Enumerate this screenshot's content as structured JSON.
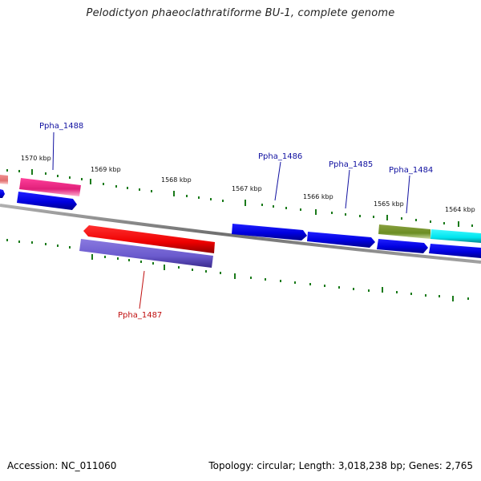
{
  "title": "Pelodictyon phaeoclathratiforme BU-1, complete genome",
  "footer": {
    "accession": "Accession: NC_011060",
    "summary": "Topology: circular; Length: 3,018,238 bp; Genes: 2,765"
  },
  "colors": {
    "backbone": "#808080",
    "tick": "#1a7a1a",
    "label_forward": "#1010a0",
    "label_reverse": "#c01010"
  },
  "kbp_labels": [
    "1570 kbp",
    "1569 kbp",
    "1568 kbp",
    "1567 kbp",
    "1566 kbp",
    "1565 kbp",
    "1564 kbp"
  ],
  "gene_labels": {
    "g1488": "Ppha_1488",
    "g1487": "Ppha_1487",
    "g1486": "Ppha_1486",
    "g1485": "Ppha_1485",
    "g1484": "Ppha_1484"
  },
  "genes": [
    {
      "id": "unlabeled-left-red",
      "strand": "forward",
      "color": "#e07070"
    },
    {
      "id": "unlabeled-left-blue",
      "strand": "forward",
      "color": "#0000ee"
    },
    {
      "id": "Ppha_1488",
      "strand": "forward",
      "color": "#e0207a"
    },
    {
      "id": "unlabeled-blue-1",
      "strand": "forward",
      "color": "#0000ee"
    },
    {
      "id": "Ppha_1487",
      "strand": "reverse",
      "color": "#ee0000"
    },
    {
      "id": "unlabeled-purple",
      "strand": "forward",
      "color": "#6a5acd"
    },
    {
      "id": "Ppha_1486",
      "strand": "forward",
      "color": "#0000ee"
    },
    {
      "id": "Ppha_1485",
      "strand": "forward",
      "color": "#0000ee"
    },
    {
      "id": "Ppha_1484",
      "strand": "forward",
      "color": "#0000ee"
    },
    {
      "id": "unlabeled-olive",
      "strand": "forward",
      "color": "#6b8e23"
    },
    {
      "id": "unlabeled-cyan",
      "strand": "forward",
      "color": "#00e5ee"
    },
    {
      "id": "unlabeled-blue-right",
      "strand": "forward",
      "color": "#0000ee"
    }
  ]
}
